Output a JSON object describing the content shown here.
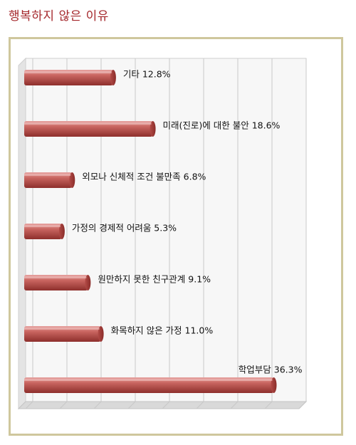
{
  "title": "행복하지 않은 이유",
  "chart_data": {
    "type": "bar",
    "orientation": "horizontal",
    "title": "",
    "xlabel": "",
    "ylabel": "",
    "xlim": [
      0,
      40
    ],
    "grid": true,
    "legend": "none",
    "bar_color": "#c0504d",
    "categories": [
      "기타",
      "미래(진로)에 대한 불안",
      "외모나 신체적 조건 불만족",
      "가정의 경제적 어려움",
      "원만하지 못한 친구관계",
      "화목하지 않은 가정",
      "학업부담"
    ],
    "values": [
      12.8,
      18.6,
      6.8,
      5.3,
      9.1,
      11.0,
      36.3
    ],
    "labels": [
      "기타 12.8%",
      "미래(진로)에 대한 불안 18.6%",
      "외모나 신체적 조건 불만족 6.8%",
      "가정의 경제적 어려움 5.3%",
      "원만하지 못한 친구관계 9.1%",
      "화목하지 않은 가정 11.0%",
      "학업부담 36.3%"
    ]
  }
}
